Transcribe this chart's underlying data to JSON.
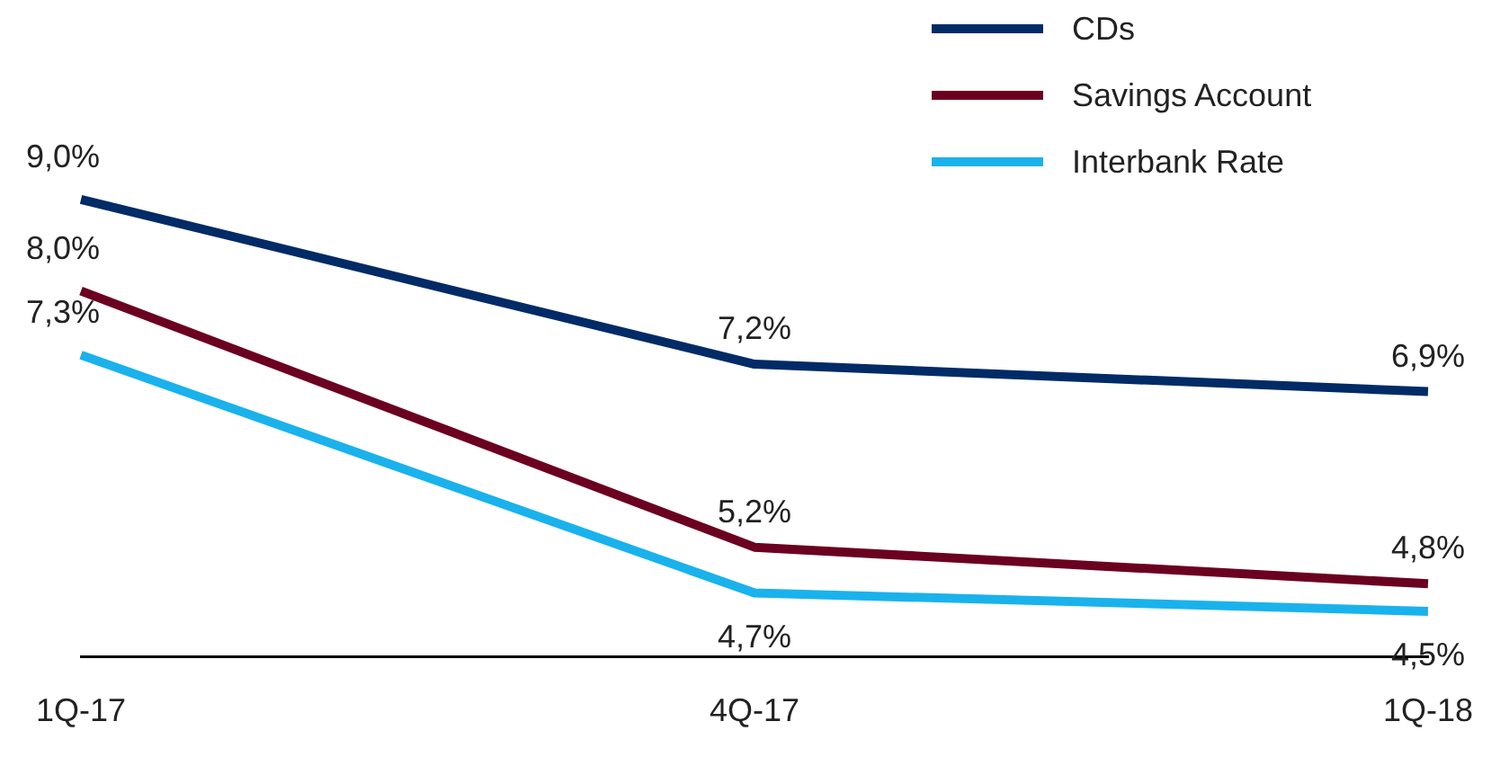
{
  "chart_data": {
    "type": "line",
    "categories": [
      "1Q-17",
      "4Q-17",
      "1Q-18"
    ],
    "series": [
      {
        "name": "CDs",
        "color": "#002b66",
        "values": [
          9.0,
          7.2,
          6.9
        ],
        "value_labels": [
          "9,0%",
          "7,2%",
          "6,9%"
        ]
      },
      {
        "name": "Savings Account",
        "color": "#6b0020",
        "values": [
          8.0,
          5.2,
          4.8
        ],
        "value_labels": [
          "8,0%",
          "5,2%",
          "4,8%"
        ]
      },
      {
        "name": "Interbank Rate",
        "color": "#1ab2ec",
        "values": [
          7.3,
          4.7,
          4.5
        ],
        "value_labels": [
          "7,3%",
          "4,7%",
          "4,5%"
        ]
      }
    ],
    "legend": "top right",
    "marker": "none",
    "line_style": "solid",
    "grid": false,
    "tick_labels": "x"
  }
}
